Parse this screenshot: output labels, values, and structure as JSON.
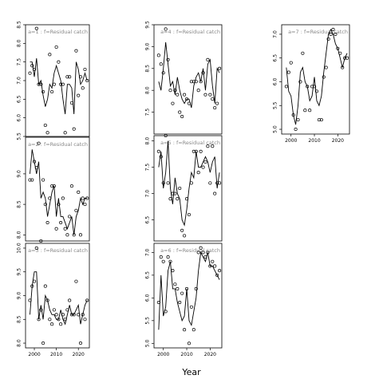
{
  "colors": {
    "line": "#000000",
    "points": "#000000",
    "label": "#888888",
    "frame": "#000000"
  },
  "chart_data": {
    "type": "scatter",
    "xlabel": "Year",
    "panels": [
      {
        "label": "a=1  :  f=Residual catch",
        "xlim": [
          1996,
          2025
        ],
        "ylim": [
          5.5,
          8.5
        ],
        "yticks": [
          "5.5",
          "6.0",
          "6.5",
          "7.0",
          "7.5",
          "8.0",
          "8.5"
        ],
        "xticks": [],
        "points": {
          "x": [
            1998,
            1999,
            2000,
            2001,
            2002,
            2003,
            2004,
            2005,
            2006,
            2007,
            2008,
            2009,
            2010,
            2011,
            2012,
            2013,
            2014,
            2015,
            2016,
            2017,
            2018,
            2019,
            2020,
            2021,
            2022,
            2023,
            2024
          ],
          "y": [
            7.2,
            7.4,
            7.3,
            8.4,
            6.9,
            6.9,
            6.7,
            5.8,
            5.6,
            7.7,
            6.7,
            6.9,
            7.9,
            7.5,
            6.9,
            6.9,
            5.6,
            7.1,
            7.1,
            6.4,
            5.7,
            7.8,
            6.6,
            7.1,
            6.8,
            7.3,
            7.0
          ]
        },
        "line": {
          "x": [
            1998,
            1999,
            2000,
            2001,
            2002,
            2003,
            2004,
            2005,
            2006,
            2007,
            2008,
            2009,
            2010,
            2011,
            2012,
            2013,
            2014,
            2015,
            2016,
            2017,
            2018,
            2019,
            2020,
            2021,
            2022,
            2023,
            2024
          ],
          "y": [
            7.5,
            7.5,
            7.1,
            7.6,
            6.9,
            7.0,
            6.6,
            6.3,
            6.5,
            6.9,
            6.8,
            7.2,
            7.4,
            7.2,
            7.0,
            6.5,
            6.1,
            6.9,
            6.9,
            6.8,
            6.1,
            7.5,
            7.3,
            6.9,
            7.0,
            7.2,
            7.0
          ]
        }
      },
      {
        "label": "a=2  :  f=Residual catch",
        "xlim": [
          1996,
          2025
        ],
        "ylim": [
          7.9,
          9.6
        ],
        "yticks": [
          "8.0",
          "8.5",
          "9.0"
        ],
        "xticks": [],
        "points": {
          "x": [
            1998,
            1999,
            2000,
            2001,
            2002,
            2003,
            2004,
            2005,
            2006,
            2007,
            2008,
            2009,
            2010,
            2011,
            2012,
            2013,
            2014,
            2015,
            2016,
            2017,
            2018,
            2019,
            2020,
            2021,
            2022,
            2023,
            2024
          ],
          "y": [
            8.9,
            8.9,
            9.2,
            9.1,
            9.5,
            7.9,
            8.9,
            8.5,
            8.2,
            8.6,
            8.8,
            8.8,
            8.1,
            8.5,
            8.2,
            8.6,
            8.1,
            8.0,
            8.3,
            8.8,
            8.0,
            8.4,
            8.7,
            8.0,
            8.6,
            8.5,
            8.6
          ]
        },
        "line": {
          "x": [
            1998,
            1999,
            2000,
            2001,
            2002,
            2003,
            2004,
            2005,
            2006,
            2007,
            2008,
            2009,
            2010,
            2011,
            2012,
            2013,
            2014,
            2015,
            2016,
            2017,
            2018,
            2019,
            2020,
            2021,
            2022,
            2023,
            2024
          ],
          "y": [
            9.0,
            9.4,
            9.2,
            9.0,
            9.2,
            8.6,
            8.7,
            8.6,
            8.3,
            8.5,
            8.7,
            8.8,
            8.3,
            8.6,
            8.3,
            8.3,
            8.2,
            8.1,
            8.2,
            8.3,
            8.0,
            8.3,
            8.4,
            8.6,
            8.5,
            8.6,
            8.6
          ]
        }
      },
      {
        "label": "a=3  :  f=Residual catch",
        "xlim": [
          1996,
          2025
        ],
        "ylim": [
          7.9,
          10.1
        ],
        "yticks": [
          "8.0",
          "8.5",
          "9.0",
          "9.5",
          "10.0"
        ],
        "xticks": [
          "2000",
          "2010",
          "2020"
        ],
        "points": {
          "x": [
            1998,
            1999,
            2000,
            2001,
            2002,
            2003,
            2004,
            2005,
            2006,
            2007,
            2008,
            2009,
            2010,
            2011,
            2012,
            2013,
            2014,
            2015,
            2016,
            2017,
            2018,
            2019,
            2020,
            2021,
            2022,
            2023,
            2024
          ],
          "y": [
            8.9,
            9.2,
            9.3,
            10.0,
            8.5,
            8.7,
            8.0,
            9.2,
            8.9,
            8.5,
            8.4,
            8.7,
            8.6,
            8.5,
            8.4,
            8.6,
            8.5,
            8.7,
            8.9,
            8.6,
            8.6,
            9.3,
            8.6,
            8.0,
            8.6,
            8.5,
            8.9
          ]
        },
        "line": {
          "x": [
            1998,
            1999,
            2000,
            2001,
            2002,
            2003,
            2004,
            2005,
            2006,
            2007,
            2008,
            2009,
            2010,
            2011,
            2012,
            2013,
            2014,
            2015,
            2016,
            2017,
            2018,
            2019,
            2020,
            2021,
            2022,
            2023,
            2024
          ],
          "y": [
            8.6,
            9.2,
            9.5,
            9.5,
            8.5,
            8.8,
            8.5,
            9.0,
            8.9,
            8.7,
            8.6,
            8.6,
            8.5,
            8.5,
            8.7,
            8.5,
            8.4,
            8.6,
            8.8,
            8.6,
            8.6,
            8.7,
            8.8,
            8.4,
            8.6,
            8.8,
            8.9
          ]
        }
      },
      {
        "label": "a=4  :  f=Residual catch",
        "xlim": [
          1996,
          2025
        ],
        "ylim": [
          7.0,
          9.5
        ],
        "yticks": [
          "7.5",
          "8.0",
          "8.5",
          "9.0",
          "9.5"
        ],
        "xticks": [],
        "points": {
          "x": [
            1998,
            1999,
            2000,
            2001,
            2002,
            2003,
            2004,
            2005,
            2006,
            2007,
            2008,
            2009,
            2010,
            2011,
            2012,
            2013,
            2014,
            2015,
            2016,
            2017,
            2018,
            2019,
            2020,
            2021,
            2022,
            2023,
            2024
          ],
          "y": [
            8.8,
            8.6,
            8.4,
            9.4,
            8.7,
            8.0,
            7.7,
            8.0,
            7.9,
            7.5,
            7.4,
            7.9,
            7.8,
            7.7,
            8.2,
            8.2,
            8.2,
            8.0,
            8.2,
            8.4,
            7.9,
            8.7,
            7.9,
            7.8,
            7.6,
            7.7,
            8.5
          ]
        },
        "line": {
          "x": [
            1998,
            1999,
            2000,
            2001,
            2002,
            2003,
            2004,
            2005,
            2006,
            2007,
            2008,
            2009,
            2010,
            2011,
            2012,
            2013,
            2014,
            2015,
            2016,
            2017,
            2018,
            2019,
            2020,
            2021,
            2022,
            2023,
            2024
          ],
          "y": [
            8.2,
            8.0,
            8.5,
            9.1,
            8.6,
            8.1,
            8.2,
            7.9,
            8.3,
            8.0,
            7.8,
            7.7,
            7.8,
            7.8,
            7.6,
            8.1,
            8.3,
            8.4,
            8.2,
            8.5,
            8.0,
            8.6,
            8.7,
            8.1,
            7.7,
            8.5,
            8.4
          ]
        }
      },
      {
        "label": "a=5  :  f=Residual catch",
        "xlim": [
          1996,
          2025
        ],
        "ylim": [
          6.1,
          8.1
        ],
        "yticks": [
          "6.5",
          "7.0",
          "7.5",
          "8.0"
        ],
        "xticks": [],
        "points": {
          "x": [
            1998,
            1999,
            2000,
            2001,
            2002,
            2003,
            2004,
            2005,
            2006,
            2007,
            2008,
            2009,
            2010,
            2011,
            2012,
            2013,
            2014,
            2015,
            2016,
            2017,
            2018,
            2019,
            2020,
            2021,
            2022,
            2023,
            2024
          ],
          "y": [
            7.8,
            7.7,
            7.2,
            8.1,
            7.2,
            6.9,
            7.0,
            7.0,
            6.9,
            7.1,
            6.3,
            6.2,
            6.9,
            6.6,
            7.2,
            7.8,
            7.8,
            7.4,
            7.8,
            7.5,
            7.6,
            7.9,
            7.2,
            7.9,
            7.0,
            7.2,
            7.2
          ]
        },
        "line": {
          "x": [
            1998,
            1999,
            2000,
            2001,
            2002,
            2003,
            2004,
            2005,
            2006,
            2007,
            2008,
            2009,
            2010,
            2011,
            2012,
            2013,
            2014,
            2015,
            2016,
            2017,
            2018,
            2019,
            2020,
            2021,
            2022,
            2023,
            2024
          ],
          "y": [
            7.5,
            7.8,
            7.1,
            7.4,
            8.0,
            7.1,
            6.8,
            7.3,
            7.0,
            6.9,
            6.5,
            6.4,
            6.7,
            7.1,
            7.4,
            7.3,
            7.8,
            7.5,
            7.5,
            7.6,
            7.7,
            7.6,
            7.4,
            7.6,
            7.7,
            7.1,
            7.4
          ]
        }
      },
      {
        "label": "a=6  :  f=Residual catch",
        "xlim": [
          1996,
          2025
        ],
        "ylim": [
          4.9,
          7.2
        ],
        "yticks": [
          "5.0",
          "5.5",
          "6.0",
          "6.5",
          "7.0"
        ],
        "xticks": [
          "2000",
          "2010",
          "2020"
        ],
        "points": {
          "x": [
            1998,
            1999,
            2000,
            2001,
            2002,
            2003,
            2004,
            2005,
            2006,
            2007,
            2008,
            2009,
            2010,
            2011,
            2012,
            2013,
            2014,
            2015,
            2016,
            2017,
            2018,
            2019,
            2020,
            2021,
            2022,
            2023,
            2024
          ],
          "y": [
            5.9,
            6.9,
            6.8,
            5.7,
            6.9,
            6.8,
            6.6,
            6.3,
            6.2,
            5.9,
            6.1,
            5.3,
            6.2,
            5.0,
            5.8,
            5.3,
            6.2,
            7.0,
            7.1,
            7.0,
            6.9,
            7.0,
            6.7,
            6.8,
            6.7,
            6.5,
            6.6
          ]
        },
        "line": {
          "x": [
            1998,
            1999,
            2000,
            2001,
            2002,
            2003,
            2004,
            2005,
            2006,
            2007,
            2008,
            2009,
            2010,
            2011,
            2012,
            2013,
            2014,
            2015,
            2016,
            2017,
            2018,
            2019,
            2020,
            2021,
            2022,
            2023,
            2024
          ],
          "y": [
            5.3,
            6.5,
            5.6,
            5.8,
            6.6,
            6.8,
            6.2,
            6.2,
            5.9,
            5.7,
            5.5,
            5.6,
            6.2,
            5.5,
            5.4,
            5.7,
            6.0,
            6.6,
            7.0,
            6.9,
            6.8,
            7.0,
            6.7,
            6.7,
            6.6,
            6.5,
            6.4
          ]
        }
      },
      {
        "label": "a=7  :  f=Residual catch",
        "xlim": [
          1996,
          2025
        ],
        "ylim": [
          4.9,
          7.2
        ],
        "yticks": [
          "5.0",
          "5.5",
          "6.0",
          "6.5",
          "7.0"
        ],
        "xticks": [
          "2000",
          "2010",
          "2020"
        ],
        "points": {
          "x": [
            1998,
            1999,
            2000,
            2001,
            2002,
            2003,
            2004,
            2005,
            2006,
            2007,
            2008,
            2009,
            2010,
            2011,
            2012,
            2013,
            2014,
            2015,
            2016,
            2017,
            2018,
            2019,
            2020,
            2021,
            2022,
            2023,
            2024
          ],
          "y": [
            5.9,
            6.2,
            6.4,
            5.3,
            5.0,
            5.2,
            6.0,
            6.6,
            5.4,
            5.9,
            5.4,
            5.9,
            5.9,
            5.8,
            5.2,
            5.2,
            6.1,
            6.3,
            6.9,
            7.0,
            7.1,
            7.0,
            6.7,
            6.6,
            6.3,
            6.5,
            6.5
          ]
        },
        "line": {
          "x": [
            1998,
            1999,
            2000,
            2001,
            2002,
            2003,
            2004,
            2005,
            2006,
            2007,
            2008,
            2009,
            2010,
            2011,
            2012,
            2013,
            2014,
            2015,
            2016,
            2017,
            2018,
            2019,
            2020,
            2021,
            2022,
            2023,
            2024
          ],
          "y": [
            6.3,
            5.8,
            5.7,
            5.3,
            5.1,
            5.5,
            6.2,
            6.3,
            6.0,
            5.9,
            5.6,
            5.7,
            6.1,
            5.6,
            5.5,
            5.7,
            6.2,
            6.6,
            7.0,
            7.1,
            7.0,
            6.8,
            6.7,
            6.5,
            6.3,
            6.5,
            6.6
          ]
        }
      }
    ]
  }
}
